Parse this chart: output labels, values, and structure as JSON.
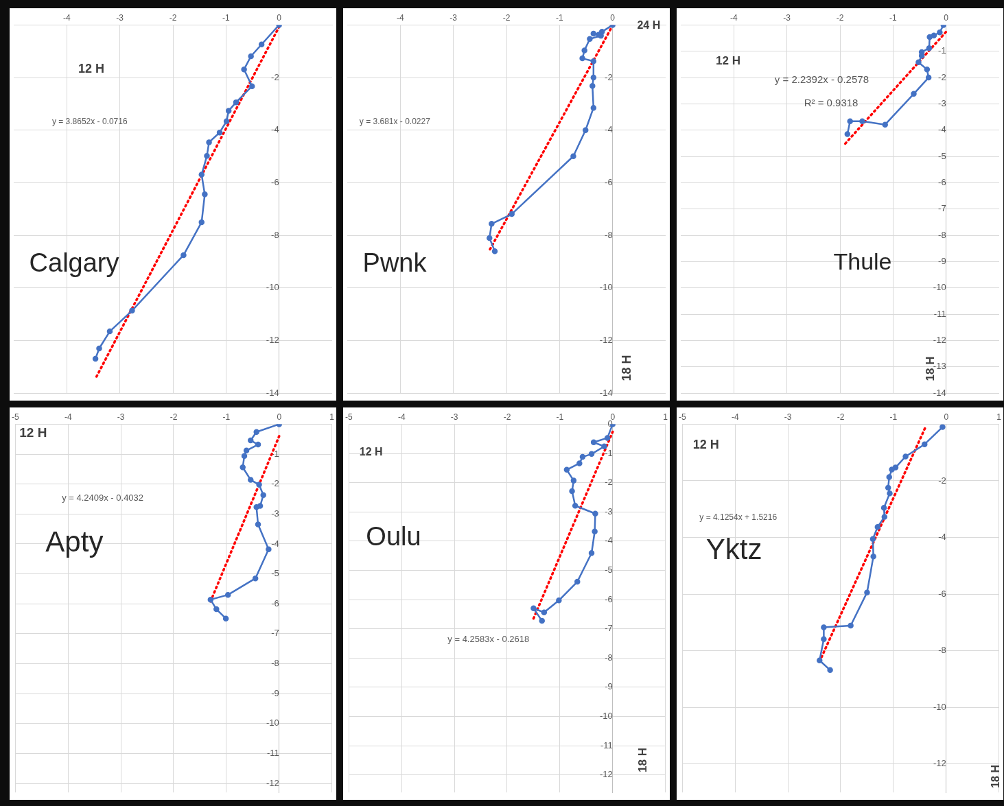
{
  "chart_data": [
    {
      "type": "line",
      "title": "Calgary",
      "annotations": [
        "12 H",
        "y = 3.8652x - 0.0716"
      ],
      "xlim": [
        -5,
        1
      ],
      "xticks": [
        -4,
        -3,
        -2,
        -1,
        0
      ],
      "ylim": [
        -14,
        0
      ],
      "yticks": [
        -2,
        -4,
        -6,
        -8,
        -10,
        -12,
        -14
      ],
      "grid": true,
      "series": [
        {
          "type": "line",
          "color": "#4472c4",
          "marker": "circle",
          "x": [
            0,
            -0.33,
            -0.53,
            -0.66,
            -0.51,
            -0.81,
            -0.95,
            -0.99,
            -1.12,
            -1.32,
            -1.36,
            -1.46,
            -1.4,
            -1.46,
            -1.8,
            -2.77,
            -3.19,
            -3.39,
            -3.46
          ],
          "values": [
            0,
            -0.74,
            -1.19,
            -1.69,
            -2.33,
            -2.94,
            -3.26,
            -3.66,
            -4.09,
            -4.46,
            -4.98,
            -5.69,
            -6.44,
            -7.5,
            -8.75,
            -10.86,
            -11.65,
            -12.3,
            -12.69
          ]
        },
        {
          "type": "line",
          "color": "#ff0000",
          "marker": "none",
          "line_style": "dotted",
          "x": [
            -3.44,
            0
          ],
          "values": [
            -13.37,
            -0.07
          ]
        }
      ]
    },
    {
      "type": "line",
      "title": "Pwnk",
      "annotations": [
        "24 H",
        "y = 3.681x - 0.0227",
        "18 H"
      ],
      "xlim": [
        -5,
        1
      ],
      "xticks": [
        -4,
        -3,
        -2,
        -1,
        0
      ],
      "ylim": [
        -14,
        0
      ],
      "yticks": [
        -2,
        -4,
        -6,
        -8,
        -10,
        -12,
        -14
      ],
      "grid": true,
      "series": [
        {
          "type": "line",
          "color": "#4472c4",
          "marker": "circle",
          "x": [
            0,
            -0.2,
            -0.26,
            -0.36,
            -0.22,
            -0.43,
            -0.53,
            -0.57,
            -0.36,
            -0.36,
            -0.38,
            -0.36,
            -0.51,
            -0.74,
            -1.9,
            -2.28,
            -2.32,
            -2.22
          ],
          "values": [
            0,
            -0.26,
            -0.37,
            -0.33,
            -0.41,
            -0.53,
            -0.97,
            -1.27,
            -1.38,
            -2,
            -2.32,
            -3.15,
            -4,
            -4.99,
            -7.19,
            -7.56,
            -8.1,
            -8.6
          ]
        },
        {
          "type": "line",
          "color": "#ff0000",
          "marker": "none",
          "line_style": "dotted",
          "x": [
            -2.31,
            0
          ],
          "values": [
            -8.53,
            -0.02
          ]
        }
      ]
    },
    {
      "type": "line",
      "title": "Thule",
      "annotations": [
        "12 H",
        "y = 2.2392x - 0.2578",
        "R² = 0.9318",
        "18 H"
      ],
      "xlim": [
        -5,
        1
      ],
      "xticks": [
        -4,
        -3,
        -2,
        -1,
        0
      ],
      "ylim": [
        -14,
        0
      ],
      "yticks": [
        -1,
        -2,
        -3,
        -4,
        -5,
        -6,
        -7,
        -8,
        -9,
        -10,
        -11,
        -12,
        -13,
        -14
      ],
      "grid": true,
      "series": [
        {
          "type": "line",
          "color": "#4472c4",
          "marker": "circle",
          "x": [
            -0.05,
            -0.12,
            -0.23,
            -0.31,
            -0.32,
            -0.46,
            -0.46,
            -0.52,
            -0.36,
            -0.33,
            -0.61,
            -1.15,
            -1.58,
            -1.81,
            -1.86
          ],
          "values": [
            0,
            -0.28,
            -0.4,
            -0.46,
            -0.88,
            -1.03,
            -1.17,
            -1.42,
            -1.69,
            -2,
            -2.62,
            -3.79,
            -3.66,
            -3.66,
            -4.15
          ]
        },
        {
          "type": "line",
          "color": "#ff0000",
          "marker": "none",
          "line_style": "dotted",
          "x": [
            -1.9,
            0
          ],
          "values": [
            -4.51,
            -0.26
          ]
        }
      ]
    },
    {
      "type": "line",
      "title": "Apty",
      "annotations": [
        "12 H",
        "y = 4.2409x - 0.4032"
      ],
      "xlim": [
        -5,
        1
      ],
      "xticks": [
        -5,
        -4,
        -3,
        -2,
        -1,
        0,
        1
      ],
      "ylim": [
        -12.3,
        0
      ],
      "yticks": [
        -1,
        -2,
        -3,
        -4,
        -5,
        -6,
        -7,
        -8,
        -9,
        -10,
        -11,
        -12
      ],
      "grid": true,
      "series": [
        {
          "type": "line",
          "color": "#4472c4",
          "marker": "circle",
          "x": [
            0,
            -0.43,
            -0.54,
            -0.4,
            -0.62,
            -0.66,
            -0.69,
            -0.54,
            -0.38,
            -0.3,
            -0.36,
            -0.43,
            -0.4,
            -0.2,
            -0.45,
            -0.97,
            -1.3,
            -1.19,
            -1.01
          ],
          "values": [
            0,
            -0.26,
            -0.54,
            -0.68,
            -0.88,
            -1.06,
            -1.44,
            -1.86,
            -2.02,
            -2.37,
            -2.73,
            -2.77,
            -3.35,
            -4.18,
            -5.15,
            -5.7,
            -5.86,
            -6.18,
            -6.49
          ]
        },
        {
          "type": "line",
          "color": "#ff0000",
          "marker": "none",
          "line_style": "dotted",
          "x": [
            -1.3,
            0
          ],
          "values": [
            -5.92,
            -0.4
          ]
        }
      ]
    },
    {
      "type": "line",
      "title": "Oulu",
      "annotations": [
        "12 H",
        "y = 4.2583x - 0.2618",
        "18 H"
      ],
      "xlim": [
        -5,
        1
      ],
      "xticks": [
        -5,
        -4,
        -3,
        -2,
        -1,
        0,
        1
      ],
      "ylim": [
        -12.6,
        0
      ],
      "yticks": [
        0,
        -1,
        -2,
        -3,
        -4,
        -5,
        -6,
        -7,
        -8,
        -9,
        -10,
        -11,
        -12
      ],
      "grid": true,
      "series": [
        {
          "type": "line",
          "color": "#4472c4",
          "marker": "circle",
          "x": [
            0,
            -0.1,
            -0.36,
            -0.16,
            -0.4,
            -0.57,
            -0.63,
            -0.87,
            -0.74,
            -0.77,
            -0.71,
            -0.33,
            -0.34,
            -0.4,
            -0.67,
            -1.02,
            -1.3,
            -1.5,
            -1.34
          ],
          "values": [
            0,
            -0.47,
            -0.62,
            -0.76,
            -1.02,
            -1.12,
            -1.34,
            -1.56,
            -1.93,
            -2.29,
            -2.79,
            -3.06,
            -3.67,
            -4.41,
            -5.39,
            -6.03,
            -6.44,
            -6.3,
            -6.73
          ]
        },
        {
          "type": "line",
          "color": "#ff0000",
          "marker": "none",
          "line_style": "dotted",
          "x": [
            -1.5,
            0
          ],
          "values": [
            -6.65,
            -0.26
          ]
        }
      ]
    },
    {
      "type": "line",
      "title": "Yktz",
      "annotations": [
        "12 H",
        "y = 4.1254x + 1.5216",
        "18 H"
      ],
      "xlim": [
        -5,
        1
      ],
      "xticks": [
        -5,
        -4,
        -3,
        -2,
        -1,
        0,
        1
      ],
      "ylim": [
        -13,
        0
      ],
      "yticks": [
        -2,
        -4,
        -6,
        -8,
        -10,
        -12
      ],
      "grid": true,
      "series": [
        {
          "type": "line",
          "color": "#4472c4",
          "marker": "circle",
          "x": [
            -0.07,
            -0.41,
            -0.77,
            -0.96,
            -1.03,
            -1.08,
            -1.1,
            -1.07,
            -1.18,
            -1.17,
            -1.3,
            -1.39,
            -1.38,
            -1.5,
            -1.81,
            -2.32,
            -2.32,
            -2.4,
            -2.2
          ],
          "values": [
            -0.1,
            -0.71,
            -1.14,
            -1.53,
            -1.6,
            -1.87,
            -2.24,
            -2.44,
            -2.95,
            -3.27,
            -3.63,
            -4.05,
            -4.67,
            -5.94,
            -7.11,
            -7.17,
            -7.59,
            -8.34,
            -8.68
          ]
        },
        {
          "type": "line",
          "color": "#ff0000",
          "marker": "none",
          "line_style": "dotted",
          "x": [
            -2.4,
            -0.39
          ],
          "values": [
            -8.38,
            -0.09
          ]
        }
      ]
    }
  ]
}
